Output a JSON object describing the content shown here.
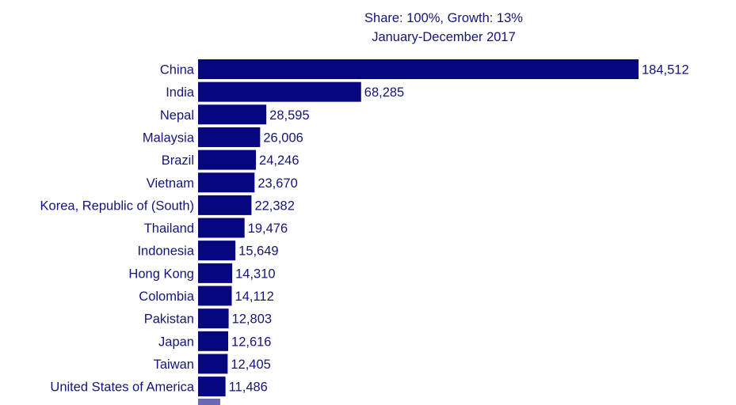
{
  "chart_data": {
    "type": "bar",
    "orientation": "horizontal",
    "title": "Share: 100%, Growth: 13%",
    "subtitle": "January-December 2017",
    "categories": [
      "China",
      "India",
      "Nepal",
      "Malaysia",
      "Brazil",
      "Vietnam",
      "Korea, Republic of (South)",
      "Thailand",
      "Indonesia",
      "Hong Kong",
      "Colombia",
      "Pakistan",
      "Japan",
      "Taiwan",
      "United States of America"
    ],
    "values": [
      184512,
      68285,
      28595,
      26006,
      24246,
      23670,
      22382,
      19476,
      15649,
      14310,
      14112,
      12803,
      12616,
      12405,
      11486
    ],
    "value_labels": [
      "184,512",
      "68,285",
      "28,595",
      "26,006",
      "24,246",
      "23,670",
      "22,382",
      "19,476",
      "15,649",
      "14,310",
      "14,112",
      "12,803",
      "12,616",
      "12,405",
      "11,486"
    ],
    "xlabel": "",
    "ylabel": "",
    "xlim": [
      0,
      184512
    ],
    "grid": false,
    "bar_color": "#06067e",
    "text_color": "#14147a"
  }
}
